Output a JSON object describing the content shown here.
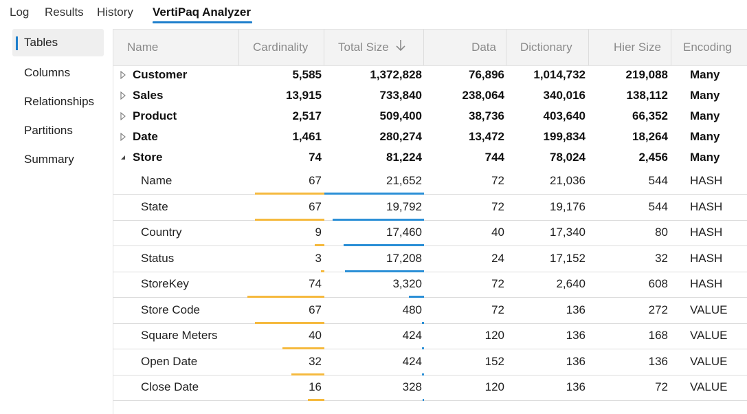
{
  "tabs": [
    {
      "label": "Log",
      "active": false
    },
    {
      "label": "Results",
      "active": false
    },
    {
      "label": "History",
      "active": false
    },
    {
      "label": "VertiPaq Analyzer",
      "active": true
    }
  ],
  "sidebar": {
    "items": [
      {
        "label": "Tables",
        "active": true
      },
      {
        "label": "Columns",
        "active": false
      },
      {
        "label": "Relationships",
        "active": false
      },
      {
        "label": "Partitions",
        "active": false
      },
      {
        "label": "Summary",
        "active": false
      }
    ]
  },
  "columns": {
    "name": "Name",
    "cardinality": "Cardinality",
    "total_size": "Total Size",
    "data": "Data",
    "dictionary": "Dictionary",
    "hier_size": "Hier Size",
    "encoding": "Encoding"
  },
  "sort": {
    "column": "Total Size",
    "direction": "descending",
    "icon": "arrow-down-icon"
  },
  "colors": {
    "accent": "#1e7fcc",
    "cardinality_bar": "#f5b93d",
    "size_bar": "#2b8fd6"
  },
  "tables": [
    {
      "name": "Customer",
      "expanded": false,
      "cardinality": "5,585",
      "total_size": "1,372,828",
      "data": "76,896",
      "dictionary": "1,014,732",
      "hier_size": "219,088",
      "encoding": "Many"
    },
    {
      "name": "Sales",
      "expanded": false,
      "cardinality": "13,915",
      "total_size": "733,840",
      "data": "238,064",
      "dictionary": "340,016",
      "hier_size": "138,112",
      "encoding": "Many"
    },
    {
      "name": "Product",
      "expanded": false,
      "cardinality": "2,517",
      "total_size": "509,400",
      "data": "38,736",
      "dictionary": "403,640",
      "hier_size": "66,352",
      "encoding": "Many"
    },
    {
      "name": "Date",
      "expanded": false,
      "cardinality": "1,461",
      "total_size": "280,274",
      "data": "13,472",
      "dictionary": "199,834",
      "hier_size": "18,264",
      "encoding": "Many"
    },
    {
      "name": "Store",
      "expanded": true,
      "cardinality": "74",
      "total_size": "81,224",
      "data": "744",
      "dictionary": "78,024",
      "hier_size": "2,456",
      "encoding": "Many"
    }
  ],
  "store_columns": [
    {
      "name": "Name",
      "cardinality": "67",
      "total_size": "21,652",
      "data": "72",
      "dictionary": "21,036",
      "hier_size": "544",
      "encoding": "HASH",
      "cardinality_fraction": 0.905,
      "size_fraction": 1.0
    },
    {
      "name": "State",
      "cardinality": "67",
      "total_size": "19,792",
      "data": "72",
      "dictionary": "19,176",
      "hier_size": "544",
      "encoding": "HASH",
      "cardinality_fraction": 0.905,
      "size_fraction": 0.914
    },
    {
      "name": "Country",
      "cardinality": "9",
      "total_size": "17,460",
      "data": "40",
      "dictionary": "17,340",
      "hier_size": "80",
      "encoding": "HASH",
      "cardinality_fraction": 0.122,
      "size_fraction": 0.806
    },
    {
      "name": "Status",
      "cardinality": "3",
      "total_size": "17,208",
      "data": "24",
      "dictionary": "17,152",
      "hier_size": "32",
      "encoding": "HASH",
      "cardinality_fraction": 0.041,
      "size_fraction": 0.795
    },
    {
      "name": "StoreKey",
      "cardinality": "74",
      "total_size": "3,320",
      "data": "72",
      "dictionary": "2,640",
      "hier_size": "608",
      "encoding": "HASH",
      "cardinality_fraction": 1.0,
      "size_fraction": 0.153
    },
    {
      "name": "Store Code",
      "cardinality": "67",
      "total_size": "480",
      "data": "72",
      "dictionary": "136",
      "hier_size": "272",
      "encoding": "VALUE",
      "cardinality_fraction": 0.905,
      "size_fraction": 0.022
    },
    {
      "name": "Square Meters",
      "cardinality": "40",
      "total_size": "424",
      "data": "120",
      "dictionary": "136",
      "hier_size": "168",
      "encoding": "VALUE",
      "cardinality_fraction": 0.541,
      "size_fraction": 0.02
    },
    {
      "name": "Open Date",
      "cardinality": "32",
      "total_size": "424",
      "data": "152",
      "dictionary": "136",
      "hier_size": "136",
      "encoding": "VALUE",
      "cardinality_fraction": 0.432,
      "size_fraction": 0.02
    },
    {
      "name": "Close Date",
      "cardinality": "16",
      "total_size": "328",
      "data": "120",
      "dictionary": "136",
      "hier_size": "72",
      "encoding": "VALUE",
      "cardinality_fraction": 0.216,
      "size_fraction": 0.015
    }
  ]
}
